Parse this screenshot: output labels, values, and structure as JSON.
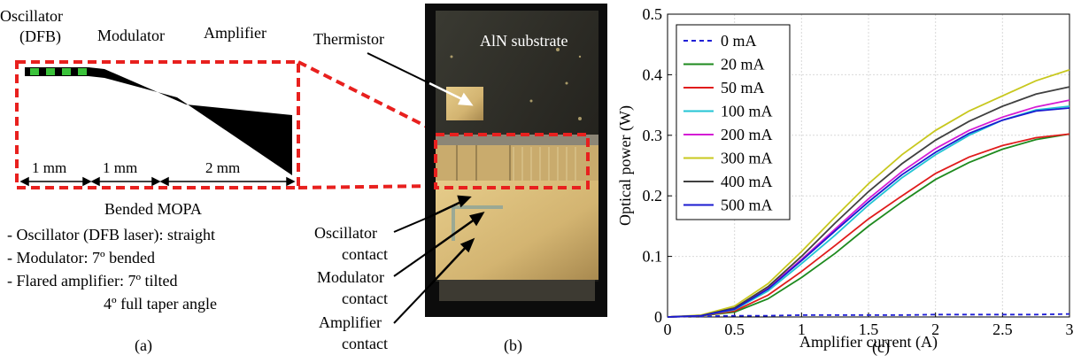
{
  "panel_a": {
    "label_oscillator": "Oscillator",
    "label_dfb": "(DFB)",
    "label_modulator": "Modulator",
    "label_amplifier": "Amplifier",
    "dim1": "1 mm",
    "dim2": "1 mm",
    "dim3": "2 mm",
    "title": "Bended MOPA",
    "bullets": [
      "- Oscillator (DFB laser): straight",
      "- Modulator: 7º bended",
      "- Flared amplifier: 7º tilted",
      "4º full taper angle"
    ],
    "caption": "(a)",
    "colors": {
      "dashed_box": "#e8201e",
      "stripe_green": "#3ac23a",
      "waveguide": "#000000"
    }
  },
  "panel_b": {
    "thermistor": "Thermistor",
    "substrate": "AlN substrate",
    "oscillator_contact": [
      "Oscillator",
      "contact"
    ],
    "modulator_contact": [
      "Modulator",
      "contact"
    ],
    "amplifier_contact": [
      "Amplifier",
      "contact"
    ],
    "caption": "(b)"
  },
  "panel_c": {
    "caption": "(c)",
    "chart_data": {
      "type": "line",
      "xlabel": "Amplifier current (A)",
      "ylabel": "Optical power (W)",
      "xlim": [
        0,
        3
      ],
      "ylim": [
        0,
        0.5
      ],
      "xticks": [
        "0",
        "0.5",
        "1",
        "1.5",
        "2",
        "2.5",
        "3"
      ],
      "yticks": [
        "0",
        "0.1",
        "0.2",
        "0.3",
        "0.4",
        "0.5"
      ],
      "grid": true,
      "legend_position": "top-left",
      "x": [
        0,
        0.25,
        0.5,
        0.75,
        1,
        1.25,
        1.5,
        1.75,
        2,
        2.25,
        2.5,
        2.75,
        3
      ],
      "series": [
        {
          "name": "0 mA",
          "color": "#1f1fd6",
          "dashed": true,
          "values": [
            0,
            0.001,
            0.002,
            0.002,
            0.003,
            0.003,
            0.003,
            0.003,
            0.004,
            0.004,
            0.004,
            0.004,
            0.005
          ]
        },
        {
          "name": "20 mA",
          "color": "#1e8a1e",
          "values": [
            0,
            0.002,
            0.008,
            0.03,
            0.065,
            0.105,
            0.15,
            0.19,
            0.227,
            0.255,
            0.277,
            0.293,
            0.302
          ]
        },
        {
          "name": "50 mA",
          "color": "#e01c1c",
          "values": [
            0,
            0.002,
            0.01,
            0.036,
            0.075,
            0.118,
            0.162,
            0.2,
            0.237,
            0.264,
            0.283,
            0.296,
            0.302
          ]
        },
        {
          "name": "100 mA",
          "color": "#22c4d4",
          "values": [
            0,
            0.002,
            0.012,
            0.043,
            0.088,
            0.135,
            0.185,
            0.23,
            0.268,
            0.3,
            0.325,
            0.342,
            0.348
          ]
        },
        {
          "name": "200 mA",
          "color": "#d41cd4",
          "values": [
            0,
            0.002,
            0.014,
            0.048,
            0.095,
            0.145,
            0.195,
            0.24,
            0.278,
            0.308,
            0.33,
            0.347,
            0.358
          ]
        },
        {
          "name": "300 mA",
          "color": "#c8c81e",
          "values": [
            0,
            0.003,
            0.018,
            0.055,
            0.108,
            0.165,
            0.22,
            0.268,
            0.308,
            0.34,
            0.365,
            0.39,
            0.408
          ]
        },
        {
          "name": "400 mA",
          "color": "#404040",
          "values": [
            0,
            0.002,
            0.015,
            0.05,
            0.1,
            0.155,
            0.207,
            0.253,
            0.292,
            0.323,
            0.348,
            0.368,
            0.38
          ]
        },
        {
          "name": "500 mA",
          "color": "#1a1ad0",
          "values": [
            0,
            0.002,
            0.013,
            0.046,
            0.093,
            0.142,
            0.19,
            0.235,
            0.272,
            0.303,
            0.325,
            0.34,
            0.345
          ]
        }
      ]
    }
  }
}
